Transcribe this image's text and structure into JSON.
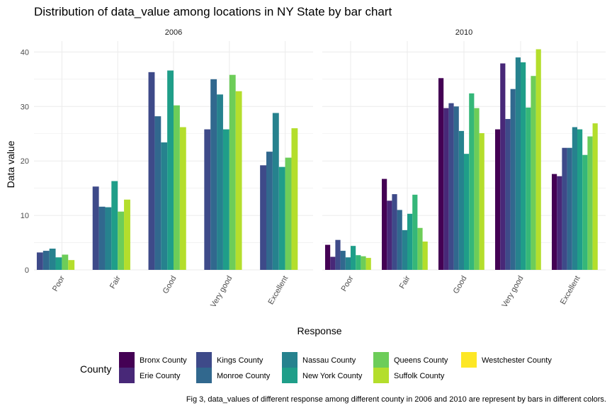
{
  "chart_data": {
    "type": "bar",
    "title": "Distribution of data_value among locations in NY State by bar chart",
    "xlabel": "Response",
    "ylabel": "Data value",
    "ylim": [
      0,
      42
    ],
    "y_ticks": [
      0,
      10,
      20,
      30,
      40
    ],
    "grid": true,
    "legend_title": "County",
    "legend_position": "bottom",
    "caption": "Fig 3, data_values of different response among different county in 2006 and 2010 are represent by bars in different colors.",
    "categories": [
      "Poor",
      "Fair",
      "Good",
      "Very good",
      "Excellent"
    ],
    "counties": [
      {
        "name": "Bronx County",
        "color": "#440154"
      },
      {
        "name": "Erie County",
        "color": "#482878"
      },
      {
        "name": "Kings County",
        "color": "#3E4A89"
      },
      {
        "name": "Monroe County",
        "color": "#31688E"
      },
      {
        "name": "Nassau County",
        "color": "#26828E"
      },
      {
        "name": "New York County",
        "color": "#1F9E89"
      },
      {
        "name": "Queens County",
        "color": "#35B779"
      },
      {
        "name": "Queens County",
        "color": "#6DCD59"
      },
      {
        "name": "Suffolk County",
        "color": "#B4DE2C"
      },
      {
        "name": "Westchester County",
        "color": "#FDE725"
      }
    ],
    "legend_order": [
      {
        "name": "Bronx County",
        "color": "#440154"
      },
      {
        "name": "Erie County",
        "color": "#482878"
      },
      {
        "name": "Kings County",
        "color": "#3E4A89"
      },
      {
        "name": "Monroe County",
        "color": "#31688E"
      },
      {
        "name": "Nassau County",
        "color": "#26828E"
      },
      {
        "name": "New York County",
        "color": "#1F9E89"
      },
      {
        "name": "Queens County",
        "color": "#6DCD59"
      },
      {
        "name": "Suffolk County",
        "color": "#B4DE2C"
      },
      {
        "name": "Westchester County",
        "color": "#FDE725"
      }
    ],
    "panels": [
      {
        "label": "2006",
        "slots": 8,
        "series": [
          {
            "county": "Kings County",
            "color": "#3E4A89",
            "values": [
              3.2,
              15.3,
              36.3,
              25.8,
              19.2
            ]
          },
          {
            "county": "Monroe County",
            "color": "#31688E",
            "values": [
              3.5,
              11.6,
              28.2,
              35.0,
              21.7
            ]
          },
          {
            "county": "Nassau County",
            "color": "#26828E",
            "values": [
              3.9,
              11.5,
              23.4,
              32.2,
              28.8
            ]
          },
          {
            "county": "New York County",
            "color": "#1F9E89",
            "values": [
              2.3,
              16.3,
              36.6,
              25.8,
              18.9
            ]
          },
          {
            "county": "Queens County",
            "color": "#6DCD59",
            "values": [
              2.8,
              10.7,
              30.2,
              35.8,
              20.6
            ]
          },
          {
            "county": "Suffolk County",
            "color": "#B4DE2C",
            "values": [
              1.8,
              12.9,
              26.2,
              32.8,
              26.0
            ]
          }
        ],
        "slot_colors": [
          "#3E4A89",
          "#31688E",
          "#26828E",
          "#1F9E89",
          "#35B779",
          "#6DCD59",
          "#B4DE2C",
          "#FDE725"
        ],
        "slot_values": [
          [
            3.2,
            3.5,
            3.9,
            2.3,
            2.8,
            1.8
          ],
          [
            15.3,
            11.6,
            11.5,
            16.3,
            10.7,
            12.9
          ],
          [
            36.3,
            28.2,
            23.4,
            36.6,
            30.2,
            26.2
          ],
          [
            25.8,
            35.0,
            32.2,
            25.8,
            35.8,
            32.8
          ],
          [
            19.2,
            21.7,
            28.8,
            18.9,
            20.6,
            26.0
          ]
        ]
      },
      {
        "label": "2010",
        "slots": 10,
        "series": [
          {
            "county": "Bronx County",
            "color": "#440154",
            "values": [
              4.6,
              16.7,
              35.2,
              25.8,
              17.6
            ]
          },
          {
            "county": "Erie County",
            "color": "#482878",
            "values": [
              2.4,
              12.7,
              29.7,
              37.9,
              17.2
            ]
          },
          {
            "county": "Kings County",
            "color": "#3E4A89",
            "values": [
              5.5,
              13.9,
              30.6,
              27.7,
              22.4
            ]
          },
          {
            "county": "Monroe County",
            "color": "#31688E",
            "values": [
              3.5,
              11.0,
              30.0,
              33.2,
              22.4
            ]
          },
          {
            "county": "Nassau County",
            "color": "#26828E",
            "values": [
              2.3,
              7.3,
              25.5,
              39.0,
              26.2
            ]
          },
          {
            "county": "New York County",
            "color": "#1F9E89",
            "values": [
              4.4,
              10.3,
              21.3,
              38.1,
              25.8
            ]
          },
          {
            "county": "Queens County",
            "color": "#35B779",
            "values": [
              2.7,
              13.8,
              32.4,
              29.8,
              21.1
            ]
          },
          {
            "county": "Queens County",
            "color": "#6DCD59",
            "values": [
              2.5,
              7.7,
              29.7,
              35.6,
              24.5
            ]
          },
          {
            "county": "Suffolk County",
            "color": "#B4DE2C",
            "values": [
              2.2,
              5.2,
              25.1,
              40.5,
              26.9
            ]
          }
        ]
      }
    ]
  }
}
